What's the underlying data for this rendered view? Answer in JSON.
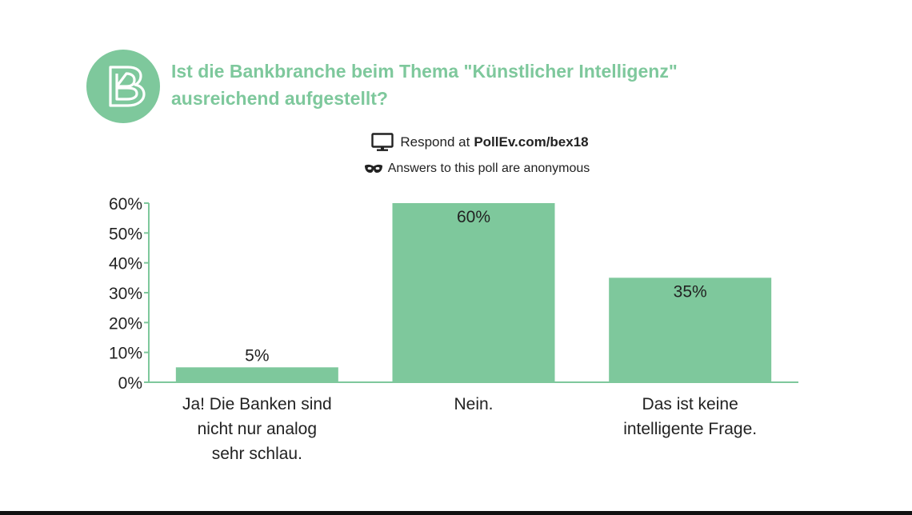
{
  "poll": {
    "question": "Ist die Bankbranche beim Thema \"Künstlicher Intelligenz\" ausreichend aufgestellt?",
    "respond_prefix": "Respond at",
    "respond_url": "PollEv.com/bex18",
    "anonymous_note": "Answers to this poll are anonymous",
    "icons": {
      "respond": "monitor-icon",
      "anonymous": "mask-icon",
      "logo": "b-logo-icon"
    }
  },
  "colors": {
    "accent": "#7ec89c",
    "text": "#222222"
  },
  "chart_data": {
    "type": "bar",
    "title": "",
    "xlabel": "",
    "ylabel": "",
    "ylim": [
      0,
      60
    ],
    "yticks": [
      "0%",
      "10%",
      "20%",
      "30%",
      "40%",
      "50%",
      "60%"
    ],
    "grid": false,
    "categories": [
      [
        "Ja! Die Banken sind",
        "nicht nur analog",
        "sehr schlau."
      ],
      [
        "Nein."
      ],
      [
        "Das ist keine",
        "intelligente Frage."
      ]
    ],
    "values": [
      5,
      60,
      35
    ],
    "value_labels": [
      "5%",
      "60%",
      "35%"
    ]
  }
}
